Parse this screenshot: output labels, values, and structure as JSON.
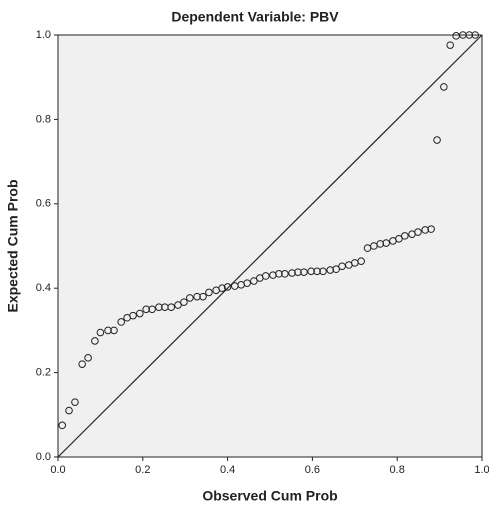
{
  "chart_data": {
    "type": "scatter",
    "title": "Dependent Variable: PBV",
    "x_label": "Observed Cum Prob",
    "y_label": "Expected Cum Prob",
    "xlim": [
      0,
      1
    ],
    "ylim": [
      0,
      1
    ],
    "xticks": [
      {
        "value": 0,
        "label": "0.0"
      },
      {
        "value": 0.2,
        "label": "0.2"
      },
      {
        "value": 0.4,
        "label": "0.4"
      },
      {
        "value": 0.6,
        "label": "0.6"
      },
      {
        "value": 0.8,
        "label": "0.8"
      },
      {
        "value": 1,
        "label": "1.0"
      }
    ],
    "yticks": [
      {
        "value": 0,
        "label": "0.0"
      },
      {
        "value": 0.2,
        "label": "0.2"
      },
      {
        "value": 0.4,
        "label": "0.4"
      },
      {
        "value": 0.6,
        "label": "0.6"
      },
      {
        "value": 0.8,
        "label": "0.8"
      },
      {
        "value": 1,
        "label": "1.0"
      }
    ],
    "x": [
      0.01,
      0.026,
      0.04,
      0.057,
      0.071,
      0.087,
      0.1,
      0.118,
      0.132,
      0.149,
      0.163,
      0.177,
      0.193,
      0.208,
      0.222,
      0.238,
      0.252,
      0.267,
      0.283,
      0.297,
      0.311,
      0.328,
      0.342,
      0.356,
      0.373,
      0.387,
      0.4,
      0.417,
      0.432,
      0.446,
      0.462,
      0.476,
      0.49,
      0.507,
      0.521,
      0.535,
      0.552,
      0.566,
      0.58,
      0.597,
      0.611,
      0.625,
      0.642,
      0.656,
      0.67,
      0.686,
      0.7,
      0.715,
      0.73,
      0.745,
      0.76,
      0.774,
      0.79,
      0.804,
      0.818,
      0.835,
      0.849,
      0.866,
      0.88,
      0.894,
      0.91,
      0.925,
      0.939,
      0.955,
      0.97,
      0.984
    ],
    "values": [
      0.075,
      0.11,
      0.13,
      0.22,
      0.235,
      0.275,
      0.295,
      0.3,
      0.3,
      0.32,
      0.33,
      0.335,
      0.34,
      0.35,
      0.35,
      0.355,
      0.355,
      0.355,
      0.36,
      0.367,
      0.377,
      0.38,
      0.38,
      0.39,
      0.395,
      0.4,
      0.403,
      0.405,
      0.408,
      0.412,
      0.417,
      0.424,
      0.429,
      0.431,
      0.434,
      0.434,
      0.436,
      0.438,
      0.438,
      0.44,
      0.44,
      0.44,
      0.443,
      0.445,
      0.452,
      0.455,
      0.46,
      0.464,
      0.495,
      0.5,
      0.505,
      0.507,
      0.512,
      0.517,
      0.524,
      0.528,
      0.533,
      0.538,
      0.54,
      0.751,
      0.877,
      0.976,
      0.998,
      1.0,
      1.0,
      1.0
    ]
  }
}
